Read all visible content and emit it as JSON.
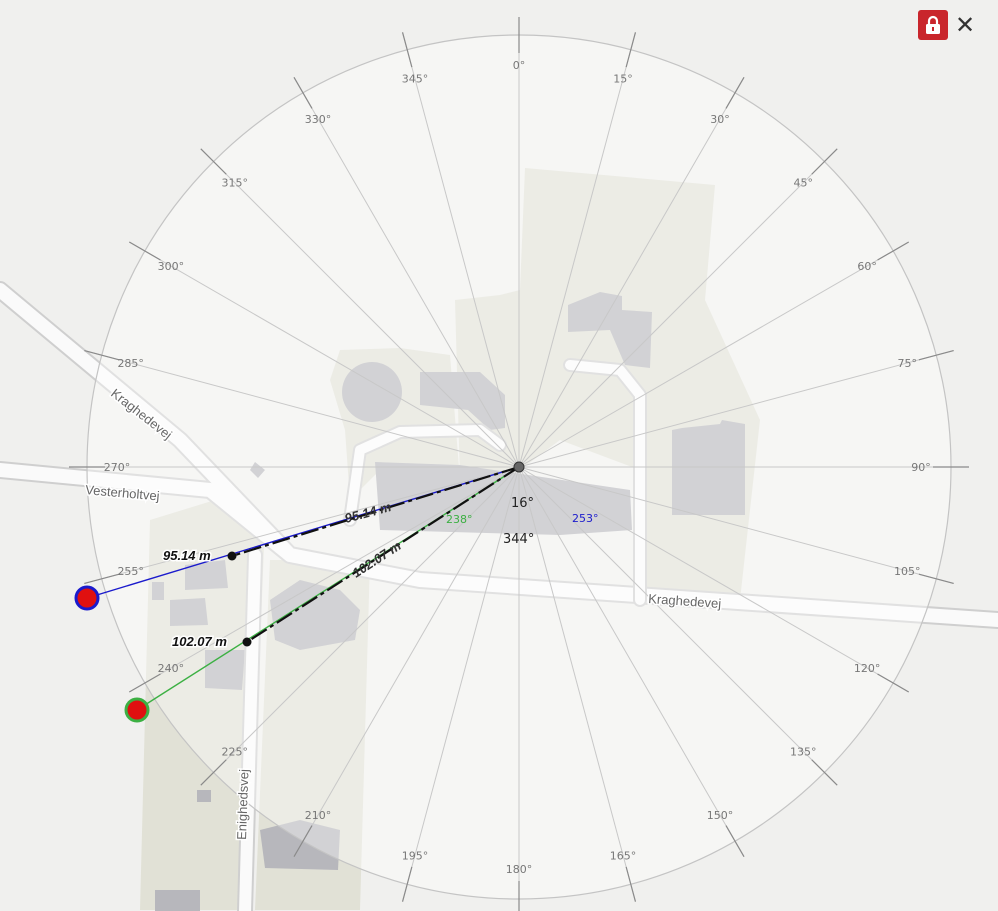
{
  "streets": {
    "kraghedevej_west": "Kraghedevej",
    "vesterholtvej": "Vesterholtvej",
    "kraghedevej_east": "Kraghedevej",
    "enighedsvej": "Enighedsvej"
  },
  "compass": {
    "labels": [
      "0°",
      "15°",
      "30°",
      "45°",
      "60°",
      "75°",
      "90°",
      "105°",
      "120°",
      "135°",
      "150°",
      "165°",
      "180°",
      "195°",
      "210°",
      "225°",
      "240°",
      "255°",
      "270°",
      "285°",
      "300°",
      "315°",
      "330°",
      "345°"
    ]
  },
  "measurements": [
    {
      "name": "blue",
      "distance_label": "95.14 m",
      "mid_label": "95.14 m",
      "bearing_label": "253°",
      "bearing_deg": 253,
      "color": "#1a1acc"
    },
    {
      "name": "green",
      "distance_label": "102.07 m",
      "mid_label": "102.07 m",
      "bearing_label": "238°",
      "bearing_deg": 238,
      "color": "#3cb043"
    }
  ],
  "center": {
    "angle_top": "16°",
    "angle_bottom": "344°"
  },
  "toolbar": {
    "lock_icon": "lock-icon",
    "close_label": "✕"
  }
}
